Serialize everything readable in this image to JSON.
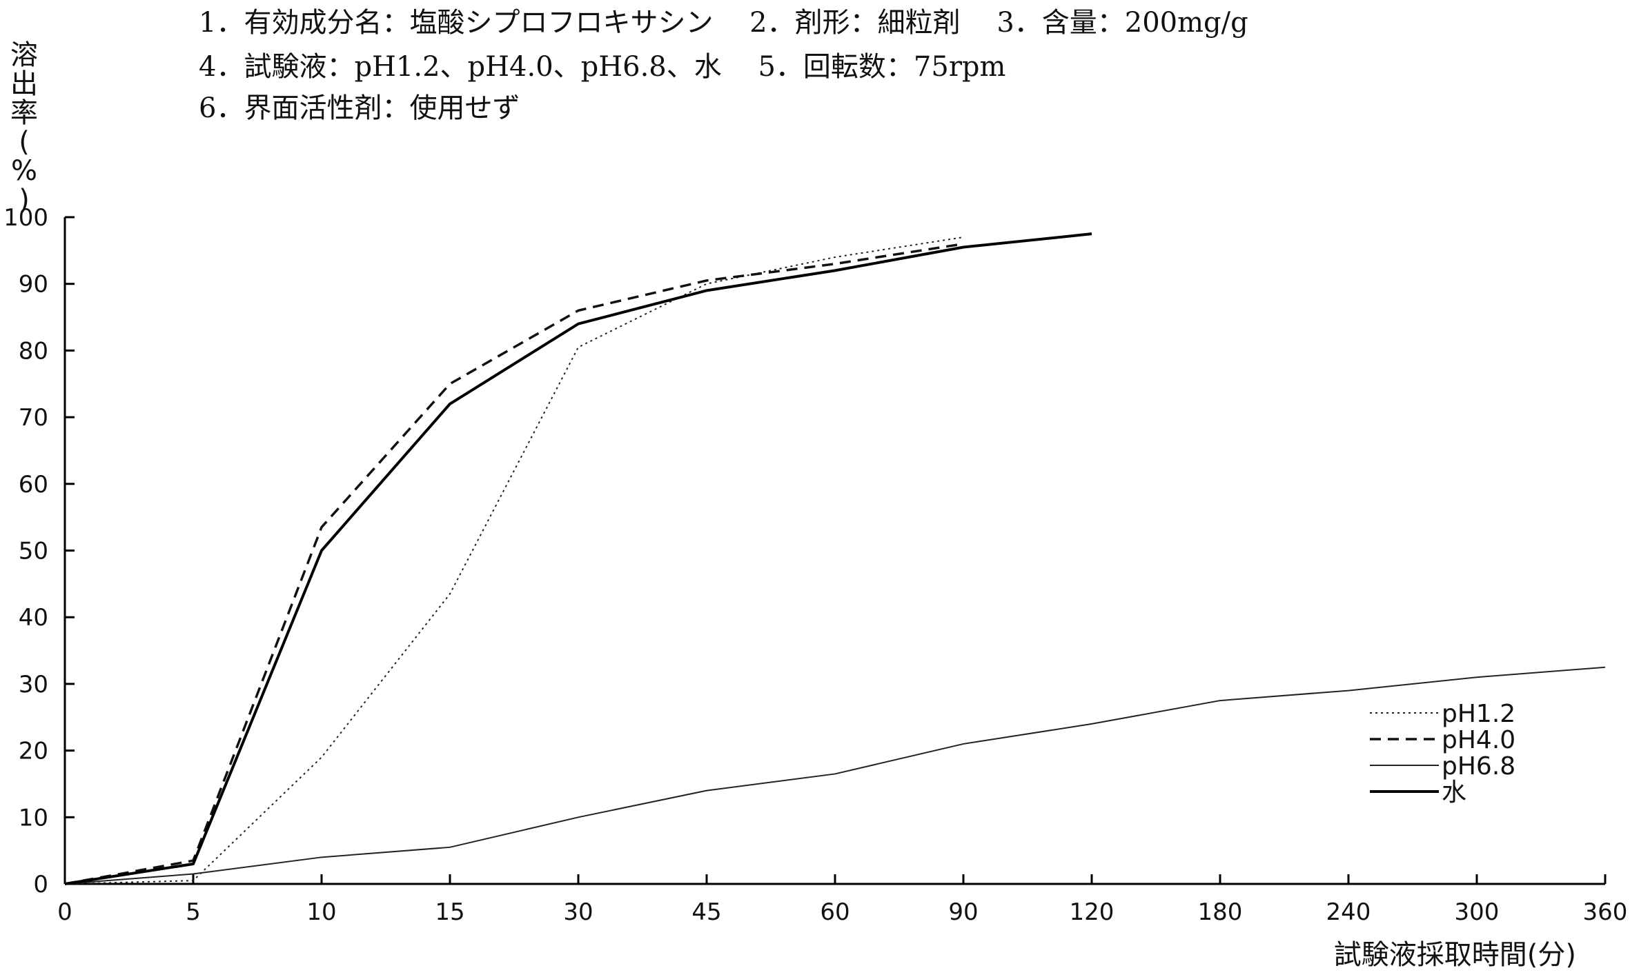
{
  "header": {
    "lines": [
      "1．有効成分名：塩酸シプロフロキサシン　 2．剤形：細粒剤　 3．含量：200mg/g",
      "4．試験液：pH1.2、pH4.0、pH6.8、水　 5．回転数：75rpm",
      "6．界面活性剤：使用せず"
    ]
  },
  "chart_data": {
    "type": "line",
    "ylabel": "溶出率(%)",
    "xlabel": "試験液採取時間(分)",
    "categories": [
      "0",
      "5",
      "10",
      "15",
      "30",
      "45",
      "60",
      "90",
      "120",
      "180",
      "240",
      "300",
      "360"
    ],
    "ylim": [
      0,
      100
    ],
    "yticks": [
      "0",
      "10",
      "20",
      "30",
      "40",
      "50",
      "60",
      "70",
      "80",
      "90",
      "100"
    ],
    "grid": false,
    "legend_position": "lower-right",
    "series": [
      {
        "name": "pH1.2",
        "style": "dotted",
        "color": "#222222",
        "values": [
          0,
          0.5,
          19,
          43.5,
          80.5,
          90,
          94,
          97,
          null,
          null,
          null,
          null,
          null
        ]
      },
      {
        "name": "pH4.0",
        "style": "dashed",
        "color": "#111111",
        "values": [
          0,
          3.5,
          53.5,
          75,
          86,
          90.5,
          93,
          96,
          null,
          null,
          null,
          null,
          null
        ]
      },
      {
        "name": "pH6.8",
        "style": "thin",
        "color": "#222222",
        "values": [
          0,
          1.5,
          4,
          5.5,
          10,
          14,
          16.5,
          21,
          24,
          27.5,
          29,
          31,
          32.5
        ]
      },
      {
        "name": "水",
        "style": "solid",
        "color": "#000000",
        "values": [
          0,
          3,
          50,
          72,
          84,
          89,
          92,
          95.5,
          97.5,
          null,
          null,
          null,
          null
        ]
      }
    ]
  }
}
